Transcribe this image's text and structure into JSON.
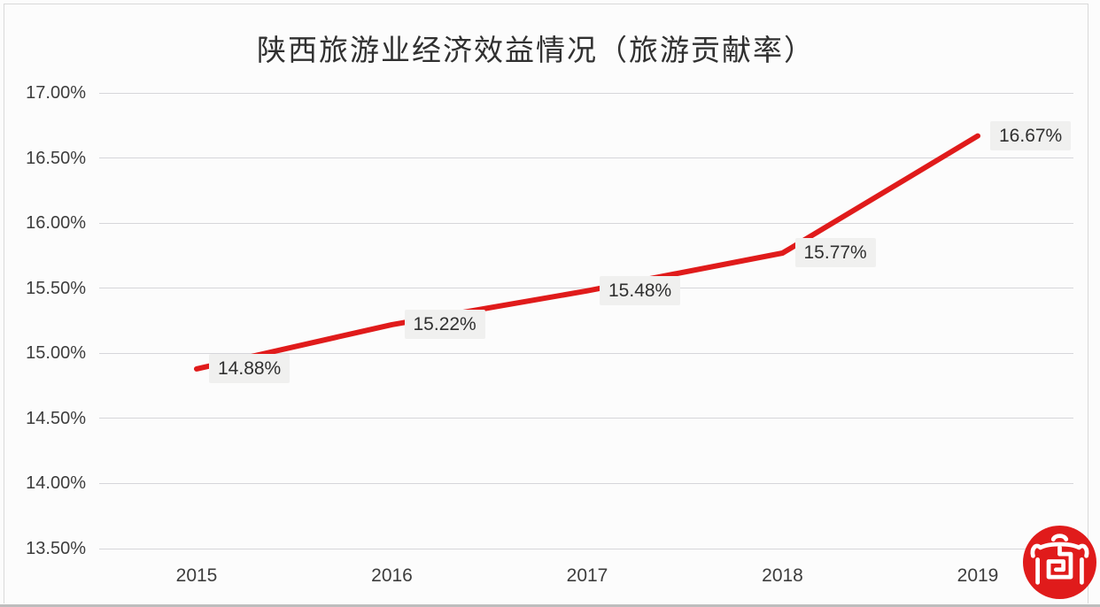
{
  "chart_data": {
    "type": "line",
    "title": "陕西旅游业经济效益情况（旅游贡献率）",
    "categories": [
      "2015",
      "2016",
      "2017",
      "2018",
      "2019"
    ],
    "series": [
      {
        "values": [
          14.88,
          15.22,
          15.48,
          15.77,
          16.67
        ],
        "point_labels": [
          "14.88%",
          "15.22%",
          "15.48%",
          "15.77%",
          "16.67%"
        ],
        "color": "#e01b1b"
      }
    ],
    "ylim": [
      13.5,
      17.0
    ],
    "ytick_labels": [
      "17.00%",
      "16.50%",
      "16.00%",
      "15.50%",
      "15.00%",
      "14.50%",
      "14.00%",
      "13.50%"
    ],
    "grid": true,
    "legend_position": "none",
    "colors": {
      "grid": "#d6d6da",
      "tick_text": "#3d3d3d",
      "title_text": "#303030",
      "point_label_bg": "#f0f0ef",
      "background": "#fcfcfc"
    }
  },
  "watermark": {
    "icon": "chinese-gate-seal",
    "color": "#e01b1b"
  }
}
